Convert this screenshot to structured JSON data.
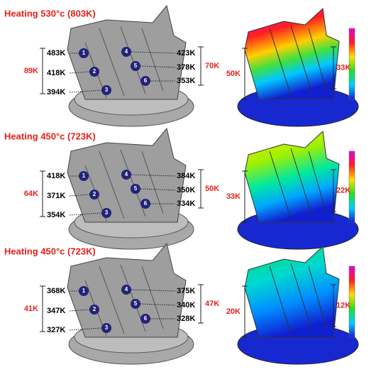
{
  "panels": [
    {
      "title": "Heating 530°c (803K)",
      "left_labels": [
        "483K",
        "418K",
        "394K"
      ],
      "right_labels": [
        "423K",
        "378K",
        "353K"
      ],
      "left_range": "89K",
      "right_range": "70K",
      "sim_left_range": "50K",
      "sim_right_range": "33K",
      "markers": [
        "1",
        "2",
        "3",
        "4",
        "5",
        "6"
      ]
    },
    {
      "title": "Heating 450°c (723K)",
      "left_labels": [
        "418K",
        "371K",
        "354K"
      ],
      "right_labels": [
        "384K",
        "350K",
        "334K"
      ],
      "left_range": "64K",
      "right_range": "50K",
      "sim_left_range": "33K",
      "sim_right_range": "22K",
      "markers": [
        "1",
        "2",
        "3",
        "4",
        "5",
        "6"
      ]
    },
    {
      "title": "Heating 450°c (723K)",
      "left_labels": [
        "368K",
        "347K",
        "327K"
      ],
      "right_labels": [
        "375K",
        "340K",
        "328K"
      ],
      "left_range": "41K",
      "right_range": "47K",
      "sim_left_range": "20K",
      "sim_right_range": "12K",
      "markers": [
        "1",
        "2",
        "3",
        "4",
        "5",
        "6"
      ]
    }
  ]
}
